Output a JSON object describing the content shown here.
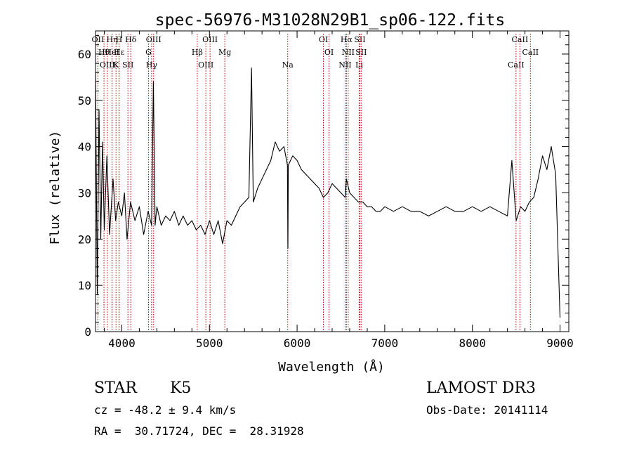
{
  "chart_data": {
    "type": "line",
    "title": "spec-56976-M31028N29B1_sp06-122.fits",
    "xlabel": "Wavelength (Å)",
    "ylabel": "Flux (relative)",
    "xlim": [
      3700,
      9100
    ],
    "ylim": [
      0,
      65
    ],
    "x_ticks": [
      4000,
      5000,
      6000,
      7000,
      8000,
      9000
    ],
    "y_ticks": [
      0,
      10,
      20,
      30,
      40,
      50,
      60
    ],
    "grid": false,
    "series": [
      {
        "name": "flux",
        "x": [
          3700,
          3720,
          3740,
          3760,
          3780,
          3800,
          3830,
          3860,
          3900,
          3930,
          3960,
          4000,
          4030,
          4060,
          4100,
          4150,
          4200,
          4250,
          4300,
          4340,
          4360,
          4380,
          4400,
          4450,
          4500,
          4550,
          4600,
          4650,
          4700,
          4750,
          4800,
          4850,
          4900,
          4950,
          5000,
          5050,
          5100,
          5150,
          5200,
          5250,
          5300,
          5350,
          5400,
          5450,
          5480,
          5500,
          5550,
          5600,
          5650,
          5700,
          5750,
          5800,
          5850,
          5890,
          5895,
          5900,
          5950,
          6000,
          6050,
          6100,
          6150,
          6200,
          6250,
          6300,
          6350,
          6400,
          6450,
          6500,
          6550,
          6563,
          6600,
          6650,
          6700,
          6750,
          6800,
          6850,
          6900,
          6950,
          7000,
          7100,
          7200,
          7300,
          7400,
          7500,
          7600,
          7700,
          7800,
          7900,
          8000,
          8100,
          8200,
          8300,
          8400,
          8450,
          8500,
          8550,
          8600,
          8650,
          8700,
          8750,
          8800,
          8850,
          8900,
          8950,
          9000
        ],
        "y": [
          56,
          8,
          48,
          20,
          41,
          22,
          38,
          21,
          33,
          24,
          28,
          25,
          30,
          20,
          28,
          24,
          27,
          21,
          26,
          23,
          54,
          23,
          27,
          23,
          25,
          24,
          26,
          23,
          25,
          23,
          24,
          22,
          23,
          21,
          24,
          21,
          24,
          19,
          24,
          23,
          25,
          27,
          28,
          29,
          57,
          28,
          31,
          33,
          35,
          37,
          41,
          39,
          40,
          36,
          18,
          36,
          38,
          37,
          35,
          34,
          33,
          32,
          31,
          29,
          30,
          32,
          31,
          30,
          29,
          33,
          30,
          29,
          28,
          28,
          27,
          27,
          26,
          26,
          27,
          26,
          27,
          26,
          26,
          25,
          26,
          27,
          26,
          26,
          27,
          26,
          27,
          26,
          25,
          37,
          24,
          27,
          26,
          28,
          29,
          33,
          38,
          35,
          40,
          34,
          3
        ]
      }
    ],
    "line_markers": [
      {
        "label": "OII",
        "wavelength": 3727
      },
      {
        "label": "Hθ",
        "wavelength": 3797
      },
      {
        "label": "OIII",
        "wavelength": 3835
      },
      {
        "label": "Hη",
        "wavelength": 3889
      },
      {
        "label": "HeI",
        "wavelength": 3889
      },
      {
        "label": "K",
        "wavelength": 3934
      },
      {
        "label": "H",
        "wavelength": 3968
      },
      {
        "label": "Hε",
        "wavelength": 3970
      },
      {
        "label": "SII",
        "wavelength": 4070
      },
      {
        "label": "Hδ",
        "wavelength": 4102
      },
      {
        "label": "G",
        "wavelength": 4305
      },
      {
        "label": "Hγ",
        "wavelength": 4340
      },
      {
        "label": "OIII",
        "wavelength": 4363
      },
      {
        "label": "Hβ",
        "wavelength": 4861
      },
      {
        "label": "OIII",
        "wavelength": 4959
      },
      {
        "label": "OIII",
        "wavelength": 5007
      },
      {
        "label": "Mg",
        "wavelength": 5175
      },
      {
        "label": "Na",
        "wavelength": 5893
      },
      {
        "label": "OI",
        "wavelength": 6300
      },
      {
        "label": "OI",
        "wavelength": 6364
      },
      {
        "label": "NII",
        "wavelength": 6548
      },
      {
        "label": "Hα",
        "wavelength": 6563
      },
      {
        "label": "NII",
        "wavelength": 6583
      },
      {
        "label": "Li",
        "wavelength": 6708
      },
      {
        "label": "SII",
        "wavelength": 6716
      },
      {
        "label": "SII",
        "wavelength": 6731
      },
      {
        "label": "CaII",
        "wavelength": 8498
      },
      {
        "label": "CaII",
        "wavelength": 8542
      },
      {
        "label": "CaII",
        "wavelength": 8662
      }
    ]
  },
  "info": {
    "object_class": "STAR",
    "subclass": "K5",
    "survey": "LAMOST DR3",
    "redshift_text": "cz = -48.2 ± 9.4 km/s",
    "obs_date_text": "Obs-Date: 20141114",
    "coords_text": "RA =  30.71724, DEC =  28.31928"
  },
  "colors": {
    "line": "#000000",
    "marker": "#c00000",
    "axis": "#000000"
  }
}
